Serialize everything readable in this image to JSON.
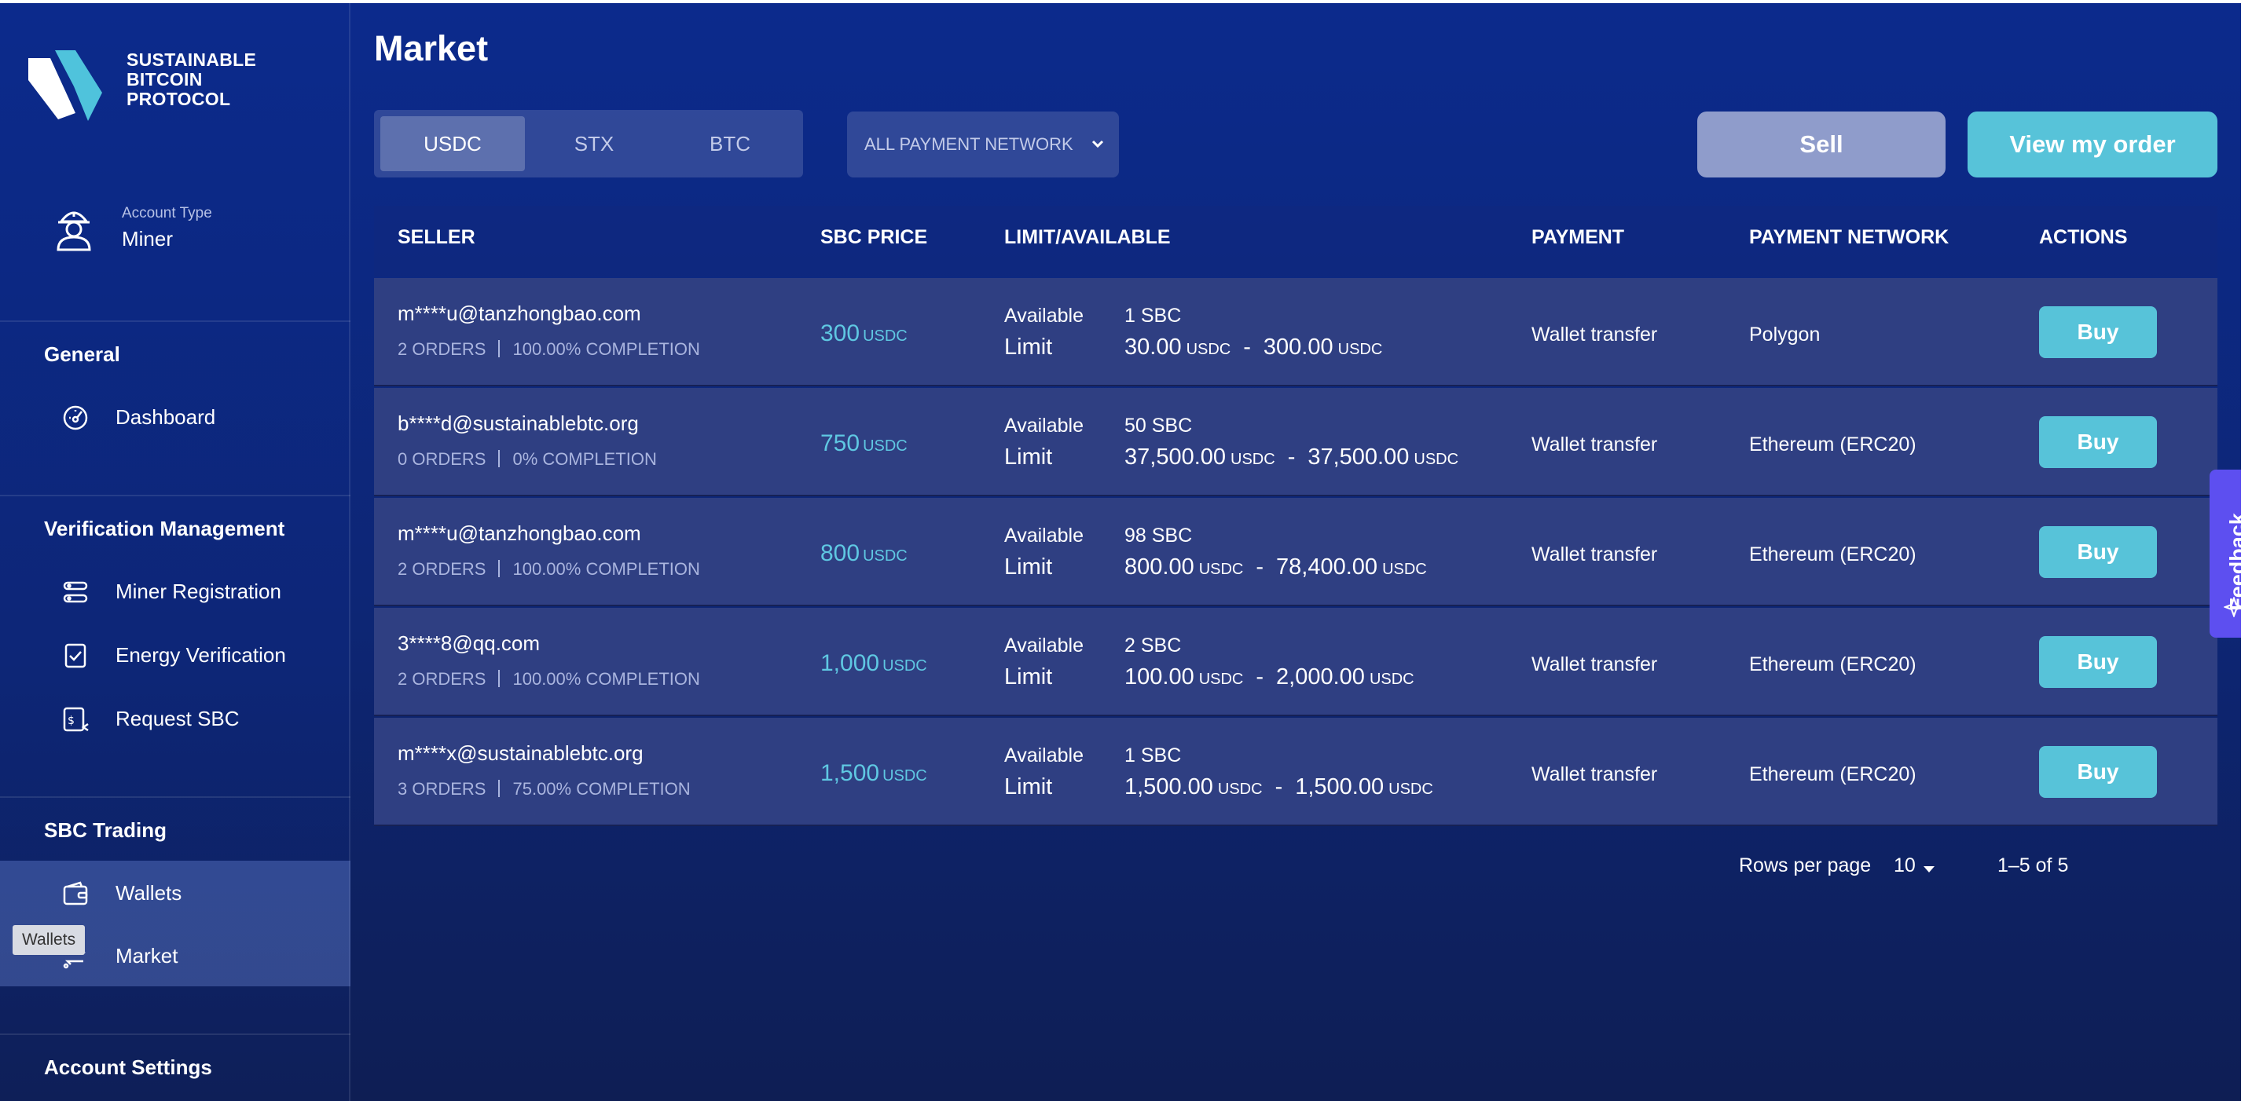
{
  "brand": {
    "name": "SUSTAINABLE BITCOIN PROTOCOL"
  },
  "account": {
    "type_label": "Account Type",
    "type_value": "Miner"
  },
  "sidebar": {
    "sections": [
      {
        "title": "General",
        "items": [
          {
            "label": "Dashboard",
            "icon": "dashboard-icon"
          }
        ]
      },
      {
        "title": "Verification Management",
        "items": [
          {
            "label": "Miner Registration",
            "icon": "registration-icon"
          },
          {
            "label": "Energy Verification",
            "icon": "check-doc-icon"
          },
          {
            "label": "Request SBC",
            "icon": "request-sbc-icon"
          }
        ]
      },
      {
        "title": "SBC Trading",
        "items": [
          {
            "label": "Wallets",
            "icon": "wallet-icon"
          },
          {
            "label": "Market",
            "icon": "market-icon"
          }
        ]
      },
      {
        "title": "Account Settings",
        "items": []
      }
    ],
    "tooltip": "Wallets"
  },
  "main": {
    "title": "Market",
    "tabs": [
      "USDC",
      "STX",
      "BTC"
    ],
    "selected_tab": "USDC",
    "network_filter": "ALL PAYMENT NETWORK",
    "sell_label": "Sell",
    "view_orders_label": "View my order"
  },
  "table": {
    "headers": [
      "SELLER",
      "SBC PRICE",
      "LIMIT/AVAILABLE",
      "PAYMENT",
      "PAYMENT NETWORK",
      "ACTIONS"
    ],
    "available_label": "Available",
    "limit_label": "Limit",
    "currency": "USDC",
    "dash": "-",
    "buy_label": "Buy",
    "rows": [
      {
        "seller": "m****u@tanzhongbao.com",
        "orders": "2 ORDERS",
        "completion": "100.00% COMPLETION",
        "price": "300",
        "available": "1 SBC",
        "limit_min": "30.00",
        "limit_max": "300.00",
        "payment": "Wallet transfer",
        "network": "Polygon"
      },
      {
        "seller": "b****d@sustainablebtc.org",
        "orders": "0 ORDERS",
        "completion": "0% COMPLETION",
        "price": "750",
        "available": "50 SBC",
        "limit_min": "37,500.00",
        "limit_max": "37,500.00",
        "payment": "Wallet transfer",
        "network": "Ethereum (ERC20)"
      },
      {
        "seller": "m****u@tanzhongbao.com",
        "orders": "2 ORDERS",
        "completion": "100.00% COMPLETION",
        "price": "800",
        "available": "98 SBC",
        "limit_min": "800.00",
        "limit_max": "78,400.00",
        "payment": "Wallet transfer",
        "network": "Ethereum (ERC20)"
      },
      {
        "seller": "3****8@qq.com",
        "orders": "2 ORDERS",
        "completion": "100.00% COMPLETION",
        "price": "1,000",
        "available": "2 SBC",
        "limit_min": "100.00",
        "limit_max": "2,000.00",
        "payment": "Wallet transfer",
        "network": "Ethereum (ERC20)"
      },
      {
        "seller": "m****x@sustainablebtc.org",
        "orders": "3 ORDERS",
        "completion": "75.00% COMPLETION",
        "price": "1,500",
        "available": "1 SBC",
        "limit_min": "1,500.00",
        "limit_max": "1,500.00",
        "payment": "Wallet transfer",
        "network": "Ethereum (ERC20)"
      }
    ]
  },
  "pagination": {
    "rows_per_page_label": "Rows per page",
    "rows_per_page": "10",
    "range": "1–5 of 5"
  },
  "feedback": {
    "label": "Feedback"
  },
  "colors": {
    "accent": "#57c3d9",
    "sell_button": "#8f9ccb",
    "feedback": "#5d4ff0",
    "price": "#5fc8e2"
  }
}
